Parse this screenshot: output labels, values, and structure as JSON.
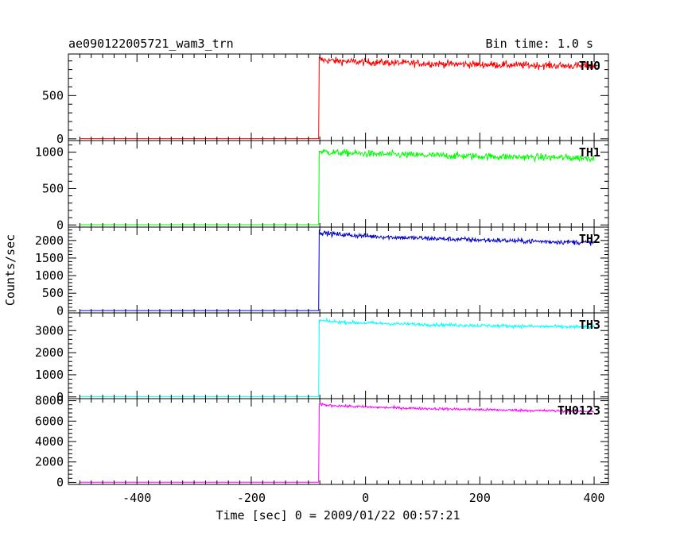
{
  "chart_data": {
    "type": "line",
    "title": "ae090122005721_wam3_trn",
    "subtitle": "Bin time: 1.0 s",
    "xlabel": "Time [sec] 0 = 2009/01/22 00:57:21",
    "ylabel": "Counts/sec",
    "xlim": [
      -520,
      425
    ],
    "x_ticks": [
      -400,
      -200,
      0,
      200,
      400
    ],
    "trigger_time": -82,
    "end_time": 400,
    "panels": [
      {
        "name": "TH0",
        "color": "#ff0000",
        "ylim": [
          -20,
          980
        ],
        "y_ticks": [
          0,
          500
        ],
        "baseline": 2,
        "peak": 920,
        "end_level": 840,
        "noise": 30
      },
      {
        "name": "TH1",
        "color": "#00ff00",
        "ylim": [
          -30,
          1160
        ],
        "y_ticks": [
          0,
          500,
          1000
        ],
        "baseline": 3,
        "peak": 1020,
        "end_level": 920,
        "noise": 35
      },
      {
        "name": "TH2",
        "color": "#0000c8",
        "ylim": [
          -60,
          2380
        ],
        "y_ticks": [
          0,
          500,
          1000,
          1500,
          2000
        ],
        "baseline": 5,
        "peak": 2260,
        "end_level": 1940,
        "noise": 50
      },
      {
        "name": "TH3",
        "color": "#00ffff",
        "ylim": [
          -80,
          3800
        ],
        "y_ticks": [
          0,
          1000,
          2000,
          3000
        ],
        "baseline": 8,
        "peak": 3480,
        "end_level": 3150,
        "noise": 55
      },
      {
        "name": "TH0123",
        "color": "#ff00ff",
        "ylim": [
          -200,
          8200
        ],
        "y_ticks": [
          0,
          2000,
          4000,
          6000,
          8000
        ],
        "baseline": 15,
        "peak": 7700,
        "end_level": 6950,
        "noise": 90
      }
    ]
  }
}
